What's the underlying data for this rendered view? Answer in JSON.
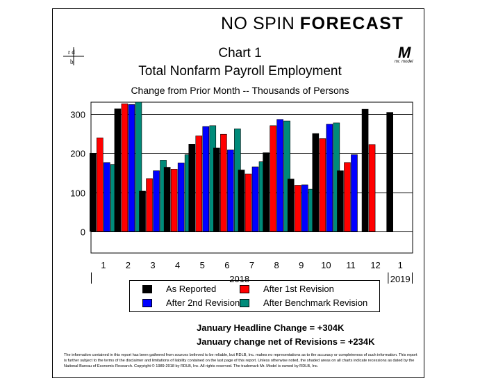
{
  "brand": {
    "part1": "NO SPIN",
    "part2": "FORECAST"
  },
  "logo_left": {
    "top": "r d",
    "bottom": "b"
  },
  "logo_right": {
    "letter": "M",
    "caption": "mr. model"
  },
  "chart_data": {
    "type": "bar",
    "title": "Chart 1",
    "title_line2": "Total Nonfarm Payroll Employment",
    "subtitle": "Change from Prior Month -- Thousands of Persons",
    "categories": [
      "1",
      "2",
      "3",
      "4",
      "5",
      "6",
      "7",
      "8",
      "9",
      "10",
      "11",
      "12",
      "1"
    ],
    "year_groups": [
      {
        "label": "2018",
        "from": 0,
        "to": 11
      },
      {
        "label": "2019",
        "from": 12,
        "to": 12
      }
    ],
    "ylim": [
      -55,
      330
    ],
    "yticks": [
      0,
      100,
      200,
      300
    ],
    "grid": true,
    "legend_position": "bottom",
    "series": [
      {
        "name": "As Reported",
        "color": "#000000",
        "values": [
          200,
          313,
          103,
          164,
          223,
          213,
          157,
          201,
          134,
          250,
          155,
          312,
          304
        ]
      },
      {
        "name": "After 1st Revision",
        "color": "#ff0000",
        "values": [
          239,
          326,
          135,
          159,
          244,
          248,
          147,
          270,
          118,
          237,
          176,
          222,
          null
        ]
      },
      {
        "name": "After 2nd Revision",
        "color": "#0000ff",
        "values": [
          176,
          324,
          155,
          175,
          268,
          208,
          165,
          286,
          119,
          274,
          196,
          null,
          null
        ]
      },
      {
        "name": "After Benchmark Revision",
        "color": "#008b7a",
        "values": [
          171,
          330,
          182,
          196,
          270,
          262,
          178,
          282,
          108,
          277,
          null,
          null,
          null
        ]
      }
    ]
  },
  "notes": {
    "headline": "January Headline Change =  +304K",
    "net_revisions": "January change net of Revisions = +234K"
  },
  "disclaimer": "The information contained in this report has been gathered from sources believed to be reliable, but RDLB, Inc. makes no representations as to the accuracy or completeness of such information. This report is further subject to the terms of the disclaimer and limitations of liability contained on the last page of this report. Unless otherwise noted, the shaded areas on all charts indicate recessions as dated by the National Bureau of Economic Research. Copyright © 1989-2018 by RDLB, Inc. All rights reserved. The trademark Mr. Model is owned by RDLB, Inc."
}
